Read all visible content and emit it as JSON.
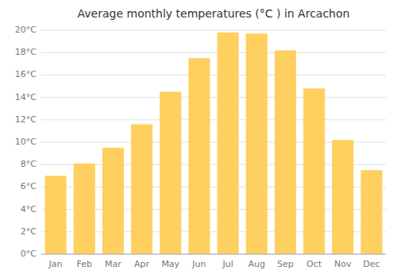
{
  "chart_data": {
    "type": "bar",
    "title": "Average monthly temperatures (°C ) in Arcachon",
    "categories": [
      "Jan",
      "Feb",
      "Mar",
      "Apr",
      "May",
      "Jun",
      "Jul",
      "Aug",
      "Sep",
      "Oct",
      "Nov",
      "Dec"
    ],
    "values": [
      7.0,
      8.1,
      9.5,
      11.6,
      14.5,
      17.5,
      19.8,
      19.7,
      18.2,
      14.8,
      10.2,
      7.5
    ],
    "color": "#FFD060",
    "ylim": [
      0,
      20
    ],
    "yticks": [
      {
        "value": 0,
        "label": "0°C"
      },
      {
        "value": 2,
        "label": "2°C"
      },
      {
        "value": 4,
        "label": "4°C"
      },
      {
        "value": 6,
        "label": "6°C"
      },
      {
        "value": 8,
        "label": "8°C"
      },
      {
        "value": 10,
        "label": "10°C"
      },
      {
        "value": 12,
        "label": "12°C"
      },
      {
        "value": 14,
        "label": "14°C"
      },
      {
        "value": 16,
        "label": "16°C"
      },
      {
        "value": 18,
        "label": "18°C"
      },
      {
        "value": 20,
        "label": "20°C"
      }
    ],
    "grid": true
  }
}
